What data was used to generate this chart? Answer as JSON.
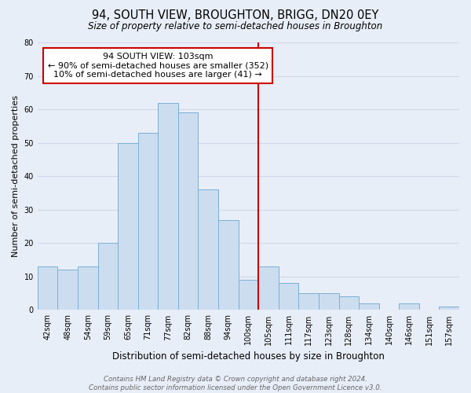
{
  "title": "94, SOUTH VIEW, BROUGHTON, BRIGG, DN20 0EY",
  "subtitle": "Size of property relative to semi-detached houses in Broughton",
  "xlabel": "Distribution of semi-detached houses by size in Broughton",
  "ylabel": "Number of semi-detached properties",
  "categories": [
    "42sqm",
    "48sqm",
    "54sqm",
    "59sqm",
    "65sqm",
    "71sqm",
    "77sqm",
    "82sqm",
    "88sqm",
    "94sqm",
    "100sqm",
    "105sqm",
    "111sqm",
    "117sqm",
    "123sqm",
    "128sqm",
    "134sqm",
    "140sqm",
    "146sqm",
    "151sqm",
    "157sqm"
  ],
  "values": [
    13,
    12,
    13,
    20,
    50,
    53,
    62,
    59,
    36,
    27,
    9,
    13,
    8,
    5,
    5,
    4,
    2,
    0,
    2,
    0,
    1
  ],
  "bar_color": "#ccddf0",
  "bar_edge_color": "#7bafd4",
  "ylim": [
    0,
    80
  ],
  "yticks": [
    0,
    10,
    20,
    30,
    40,
    50,
    60,
    70,
    80
  ],
  "property_label": "94 SOUTH VIEW: 103sqm",
  "annotation_line1": "← 90% of semi-detached houses are smaller (352)",
  "annotation_line2": "10% of semi-detached houses are larger (41) →",
  "vline_color": "#cc0000",
  "annotation_box_color": "#ffffff",
  "annotation_box_edge": "#cc0000",
  "footer_line1": "Contains HM Land Registry data © Crown copyright and database right 2024.",
  "footer_line2": "Contains public sector information licensed under the Open Government Licence v3.0.",
  "background_color": "#e8eef8",
  "grid_color": "#d0d8e8",
  "title_fontsize": 10.5,
  "subtitle_fontsize": 8.5,
  "xlabel_fontsize": 8.5,
  "ylabel_fontsize": 8,
  "tick_fontsize": 7,
  "annotation_fontsize": 8,
  "footer_fontsize": 6.2
}
